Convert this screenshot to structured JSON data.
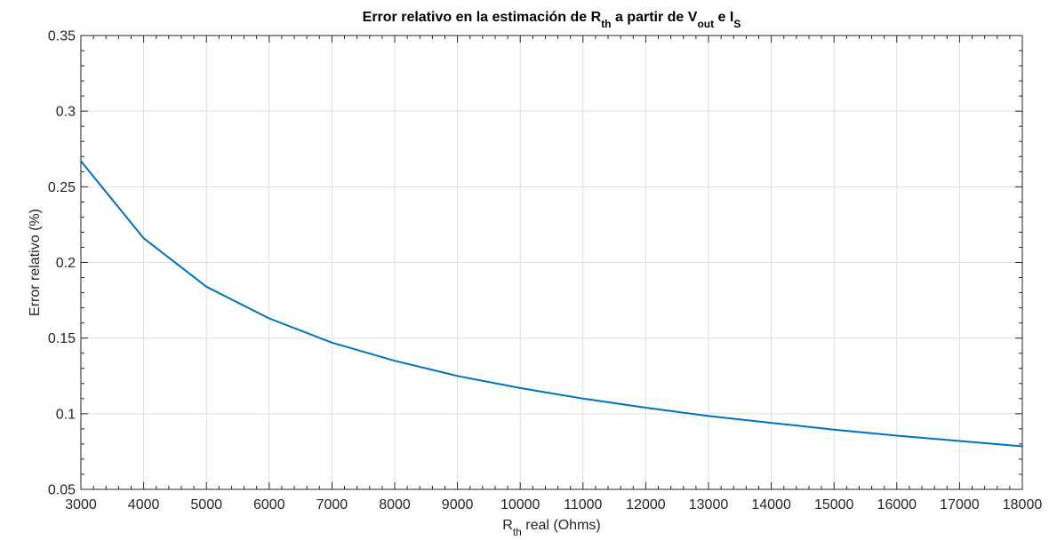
{
  "chart_data": {
    "type": "line",
    "title": {
      "parts": [
        {
          "text": "Error relativo en la estimación de R",
          "sub": false
        },
        {
          "text": "th",
          "sub": true
        },
        {
          "text": " a partir de V",
          "sub": false
        },
        {
          "text": "out",
          "sub": true
        },
        {
          "text": " e I",
          "sub": false
        },
        {
          "text": "S",
          "sub": true
        }
      ]
    },
    "xlabel": {
      "parts": [
        {
          "text": "R",
          "sub": false
        },
        {
          "text": "th",
          "sub": true
        },
        {
          "text": " real  (Ohms)",
          "sub": false
        }
      ]
    },
    "ylabel": "Error relativo (%)",
    "xlim": [
      3000,
      18000
    ],
    "ylim": [
      0.05,
      0.35
    ],
    "xticks": [
      3000,
      4000,
      5000,
      6000,
      7000,
      8000,
      9000,
      10000,
      11000,
      12000,
      13000,
      14000,
      15000,
      16000,
      17000,
      18000
    ],
    "xtick_labels": [
      "3000",
      "4000",
      "5000",
      "6000",
      "7000",
      "8000",
      "9000",
      "10000",
      "11000",
      "12000",
      "13000",
      "14000",
      "15000",
      "16000",
      "17000",
      "18000"
    ],
    "yticks": [
      0.05,
      0.1,
      0.15,
      0.2,
      0.25,
      0.3,
      0.35
    ],
    "ytick_labels": [
      "0.05",
      "0.1",
      "0.15",
      "0.2",
      "0.25",
      "0.3",
      "0.35"
    ],
    "grid": true,
    "box": true,
    "series": [
      {
        "color": "#0072BD",
        "x": [
          3000,
          4000,
          5000,
          6000,
          7000,
          8000,
          9000,
          10000,
          11000,
          12000,
          13000,
          14000,
          15000,
          16000,
          17000,
          18000
        ],
        "y": [
          0.267,
          0.216,
          0.184,
          0.163,
          0.147,
          0.135,
          0.125,
          0.117,
          0.11,
          0.104,
          0.0985,
          0.094,
          0.0895,
          0.0855,
          0.082,
          0.0785
        ]
      }
    ]
  }
}
